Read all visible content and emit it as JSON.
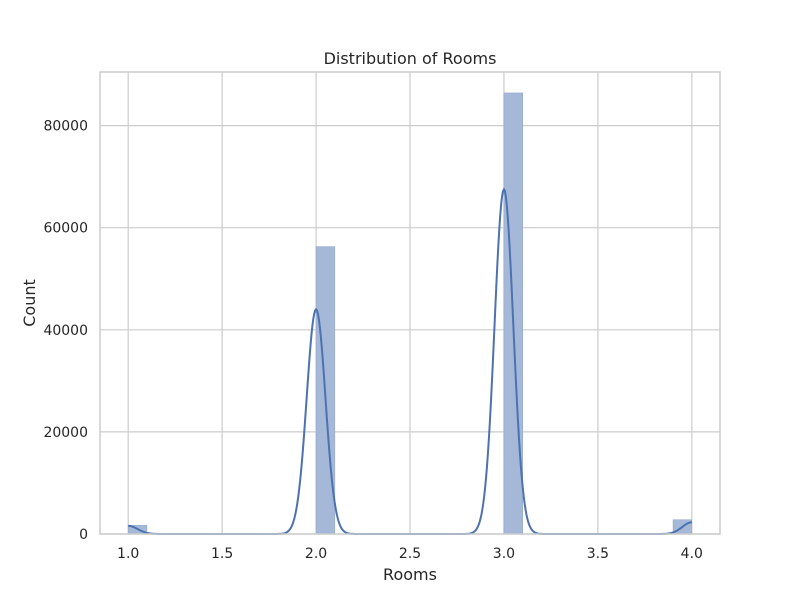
{
  "chart_data": {
    "type": "bar",
    "title": "Distribution of Rooms",
    "xlabel": "Rooms",
    "ylabel": "Count",
    "xlim": [
      0.85,
      4.15
    ],
    "ylim": [
      0,
      90500
    ],
    "x_ticks": [
      1.0,
      1.5,
      2.0,
      2.5,
      3.0,
      3.5,
      4.0
    ],
    "x_tick_labels": [
      "1.0",
      "1.5",
      "2.0",
      "2.5",
      "3.0",
      "3.5",
      "4.0"
    ],
    "y_ticks": [
      0,
      20000,
      40000,
      60000,
      80000
    ],
    "y_tick_labels": [
      "0",
      "20000",
      "40000",
      "60000",
      "80000"
    ],
    "grid": true,
    "bin_width": 0.1,
    "bars": [
      {
        "x_start": 1.0,
        "x_end": 1.1,
        "value": 1700
      },
      {
        "x_start": 2.0,
        "x_end": 2.1,
        "value": 56300
      },
      {
        "x_start": 3.0,
        "x_end": 3.1,
        "value": 86400
      },
      {
        "x_start": 3.9,
        "x_end": 4.0,
        "value": 2800
      }
    ],
    "kde": {
      "peaks": [
        {
          "center": 1.0,
          "height": 1600,
          "sigma": 0.05
        },
        {
          "center": 2.0,
          "height": 44000,
          "sigma": 0.05
        },
        {
          "center": 3.0,
          "height": 67500,
          "sigma": 0.05
        },
        {
          "center": 4.0,
          "height": 2300,
          "sigma": 0.05
        }
      ],
      "range": [
        1.0,
        4.0
      ]
    },
    "colors": {
      "bar_fill": "#a5b8d8",
      "bar_stroke": "#8fa5cc",
      "kde_line": "#4c72b0",
      "grid": "#cccccc",
      "frame": "#cccccc"
    }
  }
}
